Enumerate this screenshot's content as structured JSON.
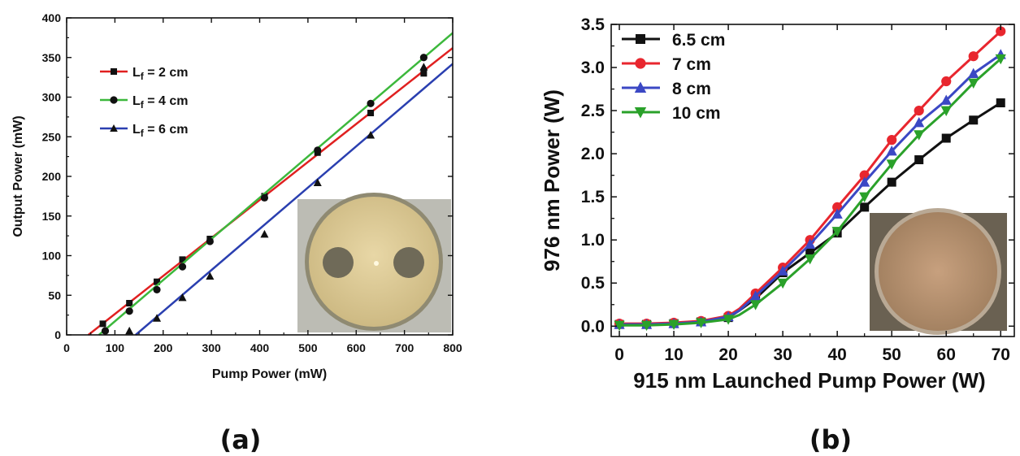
{
  "chart_data": [
    {
      "type": "line",
      "panel_label": "(a)",
      "xlabel": "Pump Power (mW)",
      "ylabel": "Output Power (mW)",
      "xlim": [
        0,
        800
      ],
      "ylim": [
        0,
        400
      ],
      "xticks": [
        "0",
        "100",
        "200",
        "300",
        "400",
        "500",
        "600",
        "700",
        "800"
      ],
      "yticks": [
        "0",
        "50",
        "100",
        "150",
        "200",
        "250",
        "300",
        "350",
        "400"
      ],
      "grid": false,
      "legend_position": "top-left",
      "inset": "fiber-cross-section-photo",
      "series": [
        {
          "name_prefix": "L",
          "name_subscript": "f",
          "name_suffix": " = 2 cm",
          "color": "#e02020",
          "marker": "square",
          "points": [
            [
              75,
              14
            ],
            [
              130,
              40
            ],
            [
              187,
              67
            ],
            [
              240,
              95
            ],
            [
              297,
              121
            ],
            [
              410,
              175
            ],
            [
              520,
              230
            ],
            [
              630,
              280
            ],
            [
              740,
              330
            ]
          ],
          "fit": [
            [
              45,
              0
            ],
            [
              800,
              362
            ]
          ]
        },
        {
          "name_prefix": "L",
          "name_subscript": "f",
          "name_suffix": " = 4 cm",
          "color": "#3cb83c",
          "marker": "circle",
          "points": [
            [
              80,
              5
            ],
            [
              130,
              30
            ],
            [
              187,
              57
            ],
            [
              240,
              86
            ],
            [
              297,
              118
            ],
            [
              410,
              173
            ],
            [
              520,
              233
            ],
            [
              630,
              292
            ],
            [
              740,
              350
            ]
          ],
          "fit": [
            [
              67,
              0
            ],
            [
              800,
              381
            ]
          ]
        },
        {
          "name_prefix": "L",
          "name_subscript": "f",
          "name_suffix": " = 6 cm",
          "color": "#2a3fb0",
          "marker": "triangle",
          "points": [
            [
              130,
              5
            ],
            [
              187,
              21
            ],
            [
              240,
              47
            ],
            [
              297,
              74
            ],
            [
              410,
              127
            ],
            [
              520,
              192
            ],
            [
              630,
              252
            ],
            [
              740,
              338
            ]
          ],
          "fit": [
            [
              143,
              0
            ],
            [
              800,
              342
            ]
          ]
        }
      ]
    },
    {
      "type": "line",
      "panel_label": "(b)",
      "xlabel": "915 nm Launched Pump Power (W)",
      "ylabel": "976 nm Power (W)",
      "xlim": [
        -1.5,
        72.5
      ],
      "ylim": [
        -0.12,
        3.5
      ],
      "xticks": [
        "0",
        "10",
        "20",
        "30",
        "40",
        "50",
        "60",
        "70"
      ],
      "yticks": [
        "0.0",
        "0.5",
        "1.0",
        "1.5",
        "2.0",
        "2.5",
        "3.0",
        "3.5"
      ],
      "grid": false,
      "legend_position": "top-left",
      "inset": "fiber-end-face-photo",
      "x": [
        0,
        5,
        10,
        15,
        20,
        22,
        25,
        30,
        35,
        40,
        45,
        50,
        55,
        60,
        65,
        70
      ],
      "series": [
        {
          "name": "6.5 cm",
          "color": "#111111",
          "marker": "square",
          "values": [
            0.02,
            0.02,
            0.03,
            0.05,
            0.1,
            0.18,
            0.32,
            0.62,
            0.85,
            1.08,
            1.38,
            1.67,
            1.93,
            2.18,
            2.39,
            2.59
          ]
        },
        {
          "name": "7 cm",
          "color": "#e8262e",
          "marker": "circle",
          "values": [
            0.03,
            0.03,
            0.04,
            0.06,
            0.12,
            0.2,
            0.38,
            0.68,
            1.0,
            1.38,
            1.75,
            2.16,
            2.5,
            2.84,
            3.13,
            3.42
          ]
        },
        {
          "name": "8 cm",
          "color": "#3b48c4",
          "marker": "triangle",
          "values": [
            0.02,
            0.02,
            0.03,
            0.05,
            0.11,
            0.18,
            0.35,
            0.64,
            0.95,
            1.3,
            1.67,
            2.03,
            2.36,
            2.62,
            2.93,
            3.15
          ]
        },
        {
          "name": "10 cm",
          "color": "#2aa12a",
          "marker": "triangle-down",
          "values": [
            0.01,
            0.01,
            0.02,
            0.04,
            0.08,
            0.13,
            0.25,
            0.5,
            0.78,
            1.1,
            1.5,
            1.88,
            2.22,
            2.5,
            2.82,
            3.1
          ]
        }
      ]
    }
  ]
}
